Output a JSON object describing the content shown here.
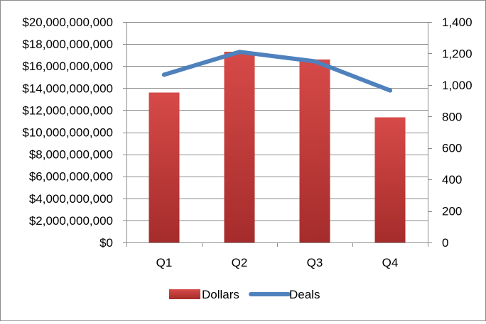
{
  "chart_data": {
    "type": "bar+line",
    "categories": [
      "Q1",
      "Q2",
      "Q3",
      "Q4"
    ],
    "series": [
      {
        "name": "Dollars",
        "type": "bar",
        "axis": "left",
        "color": "#c63b3a",
        "values": [
          13600000000,
          17300000000,
          16600000000,
          11350000000
        ]
      },
      {
        "name": "Deals",
        "type": "line",
        "axis": "right",
        "color": "#4f81bd",
        "values": [
          1065,
          1210,
          1150,
          965
        ]
      }
    ],
    "y_left": {
      "ylim": [
        0,
        20000000000
      ],
      "ticks": [
        0,
        2000000000,
        4000000000,
        6000000000,
        8000000000,
        10000000000,
        12000000000,
        14000000000,
        16000000000,
        18000000000,
        20000000000
      ],
      "tick_labels": [
        "$0",
        "$2,000,000,000",
        "$4,000,000,000",
        "$6,000,000,000",
        "$8,000,000,000",
        "$10,000,000,000",
        "$12,000,000,000",
        "$14,000,000,000",
        "$16,000,000,000",
        "$18,000,000,000",
        "$20,000,000,000"
      ]
    },
    "y_right": {
      "ylim": [
        0,
        1400
      ],
      "ticks": [
        0,
        200,
        400,
        600,
        800,
        1000,
        1200,
        1400
      ],
      "tick_labels": [
        "0",
        "200",
        "400",
        "600",
        "800",
        "1,000",
        "1,200",
        "1,400"
      ]
    },
    "grid": true,
    "legend": {
      "placement": "bottom",
      "entries": [
        "Dollars",
        "Deals"
      ]
    },
    "title": "",
    "xlabel": "",
    "ylabel": ""
  }
}
